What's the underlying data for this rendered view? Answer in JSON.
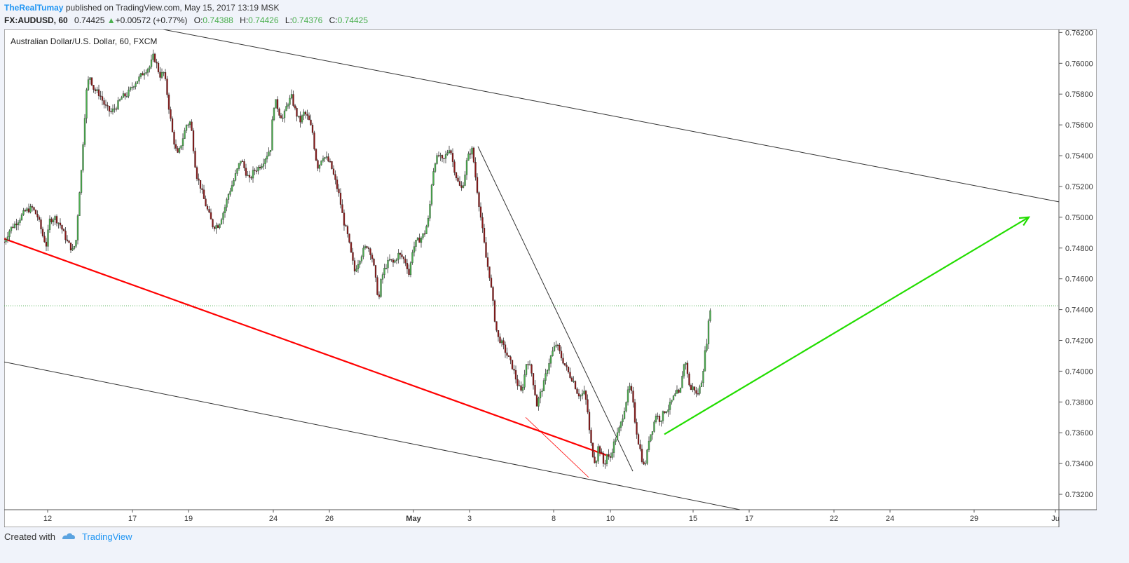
{
  "header": {
    "author": "TheRealTumay",
    "published_text": "published on TradingView.com, May 15, 2017 13:19 MSK",
    "symbol": "FX:AUDUSD, 60",
    "last": "0.74425",
    "change": "+0.00572 (+0.77%)",
    "o_label": "O:",
    "o_value": "0.74388",
    "h_label": "H:",
    "h_value": "0.74426",
    "l_label": "L:",
    "l_value": "0.74376",
    "c_label": "C:",
    "c_value": "0.74425"
  },
  "chart_title": "Australian Dollar/U.S. Dollar, 60, FXCM",
  "footer": {
    "created_with": "Created with",
    "brand": "TradingView"
  },
  "colors": {
    "up": "#4caf50",
    "down": "#8b1a1a",
    "red_line": "#ff0000",
    "green_arrow": "#22dd00",
    "trend_line": "#333333",
    "price_line": "#4caf50"
  },
  "chart_data": {
    "type": "candlestick",
    "title": "Australian Dollar/U.S. Dollar, 60, FXCM",
    "ylim": [
      0.731,
      0.7622
    ],
    "y_ticks": [
      "0.76200",
      "0.76000",
      "0.75800",
      "0.75600",
      "0.75400",
      "0.75200",
      "0.75000",
      "0.74800",
      "0.74600",
      "0.74400",
      "0.74200",
      "0.74000",
      "0.73800",
      "0.73600",
      "0.73400",
      "0.73200"
    ],
    "x_ticks": [
      {
        "label": "12",
        "t": 62
      },
      {
        "label": "17",
        "t": 183
      },
      {
        "label": "19",
        "t": 263
      },
      {
        "label": "24",
        "t": 384
      },
      {
        "label": "26",
        "t": 464
      },
      {
        "label": "May",
        "t": 584,
        "bold": true
      },
      {
        "label": "3",
        "t": 664
      },
      {
        "label": "8",
        "t": 784
      },
      {
        "label": "10",
        "t": 865
      },
      {
        "label": "15",
        "t": 983
      },
      {
        "label": "17",
        "t": 1063
      },
      {
        "label": "22",
        "t": 1184
      },
      {
        "label": "24",
        "t": 1264
      },
      {
        "label": "29",
        "t": 1384
      },
      {
        "label": "Ju",
        "t": 1500
      }
    ],
    "price_path": [
      [
        0,
        0.7484
      ],
      [
        8,
        0.7492
      ],
      [
        20,
        0.7498
      ],
      [
        30,
        0.7504
      ],
      [
        40,
        0.7506
      ],
      [
        48,
        0.75
      ],
      [
        55,
        0.7488
      ],
      [
        60,
        0.7482
      ],
      [
        65,
        0.7498
      ],
      [
        72,
        0.75
      ],
      [
        80,
        0.7495
      ],
      [
        90,
        0.7484
      ],
      [
        98,
        0.7478
      ],
      [
        103,
        0.7486
      ],
      [
        106,
        0.751
      ],
      [
        110,
        0.753
      ],
      [
        114,
        0.756
      ],
      [
        118,
        0.7585
      ],
      [
        122,
        0.7592
      ],
      [
        128,
        0.7583
      ],
      [
        136,
        0.758
      ],
      [
        144,
        0.7572
      ],
      [
        152,
        0.7568
      ],
      [
        160,
        0.7572
      ],
      [
        168,
        0.7578
      ],
      [
        176,
        0.758
      ],
      [
        184,
        0.7586
      ],
      [
        192,
        0.759
      ],
      [
        200,
        0.7595
      ],
      [
        208,
        0.7598
      ],
      [
        213,
        0.7605
      ],
      [
        217,
        0.76
      ],
      [
        222,
        0.7592
      ],
      [
        228,
        0.7594
      ],
      [
        232,
        0.7582
      ],
      [
        236,
        0.7568
      ],
      [
        240,
        0.7555
      ],
      [
        244,
        0.7545
      ],
      [
        248,
        0.754
      ],
      [
        254,
        0.755
      ],
      [
        260,
        0.756
      ],
      [
        266,
        0.7562
      ],
      [
        270,
        0.7545
      ],
      [
        274,
        0.7528
      ],
      [
        280,
        0.752
      ],
      [
        286,
        0.751
      ],
      [
        292,
        0.7502
      ],
      [
        298,
        0.7494
      ],
      [
        306,
        0.7495
      ],
      [
        314,
        0.7505
      ],
      [
        320,
        0.7515
      ],
      [
        326,
        0.7522
      ],
      [
        332,
        0.753
      ],
      [
        338,
        0.7538
      ],
      [
        344,
        0.753
      ],
      [
        350,
        0.7524
      ],
      [
        356,
        0.753
      ],
      [
        362,
        0.7532
      ],
      [
        368,
        0.7535
      ],
      [
        374,
        0.754
      ],
      [
        380,
        0.7545
      ],
      [
        384,
        0.7572
      ],
      [
        388,
        0.7575
      ],
      [
        392,
        0.7568
      ],
      [
        398,
        0.7564
      ],
      [
        404,
        0.7574
      ],
      [
        410,
        0.7578
      ],
      [
        416,
        0.7568
      ],
      [
        422,
        0.7562
      ],
      [
        428,
        0.7568
      ],
      [
        434,
        0.7564
      ],
      [
        440,
        0.7555
      ],
      [
        444,
        0.754
      ],
      [
        448,
        0.7532
      ],
      [
        454,
        0.754
      ],
      [
        460,
        0.7538
      ],
      [
        466,
        0.7534
      ],
      [
        472,
        0.7524
      ],
      [
        478,
        0.7514
      ],
      [
        484,
        0.7498
      ],
      [
        490,
        0.7488
      ],
      [
        495,
        0.7476
      ],
      [
        500,
        0.7465
      ],
      [
        506,
        0.7472
      ],
      [
        512,
        0.7478
      ],
      [
        518,
        0.7482
      ],
      [
        524,
        0.7476
      ],
      [
        528,
        0.7466
      ],
      [
        532,
        0.7452
      ],
      [
        535,
        0.7448
      ],
      [
        538,
        0.746
      ],
      [
        544,
        0.7468
      ],
      [
        550,
        0.7472
      ],
      [
        556,
        0.747
      ],
      [
        562,
        0.7476
      ],
      [
        568,
        0.7474
      ],
      [
        574,
        0.747
      ],
      [
        578,
        0.7462
      ],
      [
        582,
        0.7478
      ],
      [
        588,
        0.7484
      ],
      [
        594,
        0.7486
      ],
      [
        600,
        0.749
      ],
      [
        606,
        0.75
      ],
      [
        610,
        0.7522
      ],
      [
        614,
        0.7536
      ],
      [
        620,
        0.754
      ],
      [
        626,
        0.7536
      ],
      [
        632,
        0.7542
      ],
      [
        636,
        0.7546
      ],
      [
        640,
        0.7536
      ],
      [
        644,
        0.7528
      ],
      [
        648,
        0.7522
      ],
      [
        652,
        0.7518
      ],
      [
        656,
        0.7524
      ],
      [
        660,
        0.7536
      ],
      [
        664,
        0.7542
      ],
      [
        668,
        0.7544
      ],
      [
        672,
        0.7528
      ],
      [
        676,
        0.7514
      ],
      [
        680,
        0.75
      ],
      [
        684,
        0.7486
      ],
      [
        688,
        0.7472
      ],
      [
        692,
        0.7464
      ],
      [
        696,
        0.745
      ],
      [
        700,
        0.7434
      ],
      [
        704,
        0.7422
      ],
      [
        708,
        0.742
      ],
      [
        714,
        0.7414
      ],
      [
        720,
        0.7408
      ],
      [
        726,
        0.7402
      ],
      [
        732,
        0.7392
      ],
      [
        738,
        0.7386
      ],
      [
        742,
        0.7396
      ],
      [
        746,
        0.7408
      ],
      [
        752,
        0.74
      ],
      [
        756,
        0.739
      ],
      [
        760,
        0.7378
      ],
      [
        764,
        0.7384
      ],
      [
        770,
        0.7392
      ],
      [
        776,
        0.7404
      ],
      [
        782,
        0.7412
      ],
      [
        788,
        0.7418
      ],
      [
        794,
        0.741
      ],
      [
        800,
        0.7404
      ],
      [
        806,
        0.7398
      ],
      [
        812,
        0.7394
      ],
      [
        818,
        0.7386
      ],
      [
        822,
        0.7384
      ],
      [
        828,
        0.7386
      ],
      [
        832,
        0.7376
      ],
      [
        836,
        0.7356
      ],
      [
        840,
        0.7346
      ],
      [
        844,
        0.734
      ],
      [
        848,
        0.7352
      ],
      [
        852,
        0.7346
      ],
      [
        856,
        0.7338
      ],
      [
        860,
        0.7346
      ],
      [
        864,
        0.7342
      ],
      [
        868,
        0.735
      ],
      [
        872,
        0.7356
      ],
      [
        876,
        0.736
      ],
      [
        880,
        0.7366
      ],
      [
        884,
        0.7374
      ],
      [
        888,
        0.7382
      ],
      [
        892,
        0.739
      ],
      [
        896,
        0.7384
      ],
      [
        900,
        0.7368
      ],
      [
        904,
        0.7356
      ],
      [
        908,
        0.7348
      ],
      [
        912,
        0.7338
      ],
      [
        916,
        0.7342
      ],
      [
        920,
        0.7356
      ],
      [
        926,
        0.7364
      ],
      [
        930,
        0.7372
      ],
      [
        936,
        0.7368
      ],
      [
        942,
        0.7374
      ],
      [
        948,
        0.7376
      ],
      [
        954,
        0.7382
      ],
      [
        960,
        0.7386
      ],
      [
        964,
        0.7384
      ],
      [
        968,
        0.74
      ],
      [
        972,
        0.7408
      ],
      [
        976,
        0.7394
      ],
      [
        980,
        0.7388
      ],
      [
        984,
        0.739
      ],
      [
        988,
        0.7384
      ],
      [
        992,
        0.7388
      ],
      [
        996,
        0.7396
      ],
      [
        1000,
        0.7412
      ],
      [
        1004,
        0.7424
      ],
      [
        1006,
        0.7438
      ],
      [
        1008,
        0.74425
      ]
    ],
    "trend_lines": [
      {
        "name": "channel-top",
        "t1": 227,
        "p1": 0.7622,
        "t2": 1505,
        "p2": 0.751,
        "color": "#333333"
      },
      {
        "name": "channel-bottom",
        "t1": 0,
        "p1": 0.7406,
        "t2": 1050,
        "p2": 0.731,
        "color": "#333333"
      },
      {
        "name": "descending-trendline",
        "t1": 676,
        "p1": 0.7546,
        "t2": 897,
        "p2": 0.7335,
        "color": "#333333"
      },
      {
        "name": "red-support-line",
        "t1": 0,
        "p1": 0.7486,
        "t2": 862,
        "p2": 0.7345,
        "color": "#ff0000",
        "width": 2.2
      },
      {
        "name": "red-thin-line",
        "t1": 744,
        "p1": 0.737,
        "t2": 834,
        "p2": 0.7331,
        "color": "#ff0000",
        "width": 0.8
      }
    ],
    "projection_arrow": {
      "t1": 942,
      "p1": 0.7359,
      "t2": 1462,
      "p2": 0.75,
      "color": "#22dd00"
    },
    "current_price": 0.74425
  }
}
